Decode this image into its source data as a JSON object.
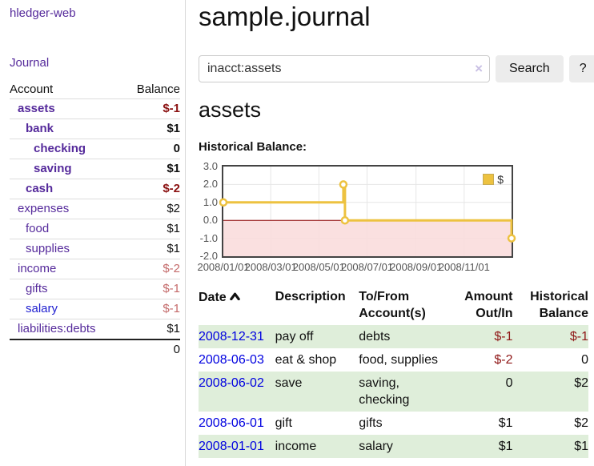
{
  "app": {
    "brand": "hledger-web",
    "nav_journal": "Journal"
  },
  "sidebar": {
    "col_account": "Account",
    "col_balance": "Balance",
    "accounts": [
      {
        "name": "assets",
        "balance": "$-1"
      },
      {
        "name": "bank",
        "balance": "$1"
      },
      {
        "name": "checking",
        "balance": "0"
      },
      {
        "name": "saving",
        "balance": "$1"
      },
      {
        "name": "cash",
        "balance": "$-2"
      },
      {
        "name": "expenses",
        "balance": "$2"
      },
      {
        "name": "food",
        "balance": "$1"
      },
      {
        "name": "supplies",
        "balance": "$1"
      },
      {
        "name": "income",
        "balance": "$-2"
      },
      {
        "name": "gifts",
        "balance": "$-1"
      },
      {
        "name": "salary",
        "balance": "$-1"
      },
      {
        "name": "liabilities:debts",
        "balance": "$1"
      }
    ],
    "total": "0"
  },
  "header": {
    "title": "sample.journal"
  },
  "search": {
    "value": "inacct:assets",
    "clear_icon": "×",
    "button_label": "Search",
    "help_label": "?"
  },
  "account_page": {
    "heading": "assets",
    "chart_label": "Historical Balance:"
  },
  "register": {
    "columns": {
      "date": "Date",
      "description": "Description",
      "tofrom_line1": "To/From",
      "tofrom_line2": "Account(s)",
      "amount_line1": "Amount",
      "amount_line2": "Out/In",
      "balance_line1": "Historical",
      "balance_line2": "Balance"
    },
    "rows": [
      {
        "date": "2008-12-31",
        "description": "pay off",
        "accounts": "debts",
        "amount": "$-1",
        "balance": "$-1"
      },
      {
        "date": "2008-06-03",
        "description": "eat & shop",
        "accounts": "food, supplies",
        "amount": "$-2",
        "balance": "0"
      },
      {
        "date": "2008-06-02",
        "description": "save",
        "accounts": "saving,\nchecking",
        "amount": "0",
        "balance": "$2"
      },
      {
        "date": "2008-06-01",
        "description": "gift",
        "accounts": "gifts",
        "amount": "$1",
        "balance": "$2"
      },
      {
        "date": "2008-01-01",
        "description": "income",
        "accounts": "salary",
        "amount": "$1",
        "balance": "$1"
      }
    ]
  },
  "chart_data": {
    "type": "line",
    "style": "step",
    "title": "Historical Balance:",
    "series": [
      {
        "name": "$",
        "color": "#edc240",
        "points": [
          {
            "date": "2008-01-01",
            "day": 0,
            "value": 1
          },
          {
            "date": "2008-06-01",
            "day": 152,
            "value": 2
          },
          {
            "date": "2008-06-03",
            "day": 154,
            "value": 0
          },
          {
            "date": "2008-12-31",
            "day": 365,
            "value": -1
          }
        ]
      }
    ],
    "ylim": [
      -2,
      3
    ],
    "yticks": [
      "3.0",
      "2.0",
      "1.0",
      "0.0",
      "-1.0",
      "-2.0"
    ],
    "xticks": [
      {
        "label": "2008/01/01",
        "day": 0
      },
      {
        "label": "2008/03/01",
        "day": 60
      },
      {
        "label": "2008/05/01",
        "day": 121
      },
      {
        "label": "2008/07/01",
        "day": 182
      },
      {
        "label": "2008/09/01",
        "day": 244
      },
      {
        "label": "2008/11/01",
        "day": 305
      }
    ],
    "x_total_days": 365,
    "grid": true,
    "legend_position": "top-right",
    "negative_fill": "#f9dada",
    "zero_line_color": "#8b0000"
  },
  "colors": {
    "link_purple": "#552a9b",
    "link_blue": "#0000e0",
    "negative_strong": "#8b1212",
    "negative_faded": "#c46a6a",
    "stripe_green": "#dfeeda",
    "series_gold": "#edc240",
    "grid_gray": "#e6e6e6"
  }
}
